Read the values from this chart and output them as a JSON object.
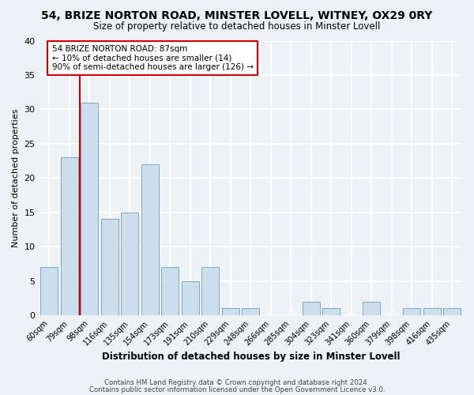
{
  "title": "54, BRIZE NORTON ROAD, MINSTER LOVELL, WITNEY, OX29 0RY",
  "subtitle": "Size of property relative to detached houses in Minster Lovell",
  "xlabel": "Distribution of detached houses by size in Minster Lovell",
  "ylabel": "Number of detached properties",
  "bar_color": "#ccdded",
  "bar_edge_color": "#7aaabf",
  "background_color": "#eef2f7",
  "grid_color": "white",
  "categories": [
    "60sqm",
    "79sqm",
    "98sqm",
    "116sqm",
    "135sqm",
    "154sqm",
    "173sqm",
    "191sqm",
    "210sqm",
    "229sqm",
    "248sqm",
    "266sqm",
    "285sqm",
    "304sqm",
    "323sqm",
    "341sqm",
    "360sqm",
    "379sqm",
    "398sqm",
    "416sqm",
    "435sqm"
  ],
  "values": [
    7,
    23,
    31,
    14,
    15,
    22,
    7,
    5,
    7,
    1,
    1,
    0,
    0,
    2,
    1,
    0,
    2,
    0,
    1,
    1,
    1
  ],
  "ylim": [
    0,
    40
  ],
  "yticks": [
    0,
    5,
    10,
    15,
    20,
    25,
    30,
    35,
    40
  ],
  "vline_x_index": 1,
  "vline_color": "#cc0000",
  "annotation_title": "54 BRIZE NORTON ROAD: 87sqm",
  "annotation_line1": "← 10% of detached houses are smaller (14)",
  "annotation_line2": "90% of semi-detached houses are larger (126) →",
  "annotation_box_color": "white",
  "annotation_box_edge": "#cc0000",
  "footer_line1": "Contains HM Land Registry data © Crown copyright and database right 2024.",
  "footer_line2": "Contains public sector information licensed under the Open Government Licence v3.0."
}
